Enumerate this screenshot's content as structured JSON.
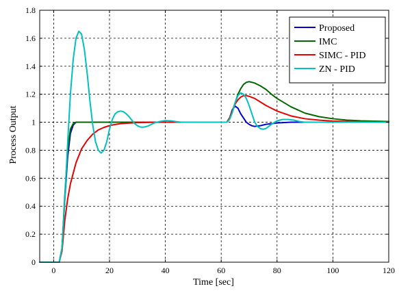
{
  "chart_data": {
    "type": "line",
    "title": "",
    "xlabel": "Time [sec]",
    "ylabel": "Process Output",
    "xlim": [
      -5,
      120
    ],
    "ylim": [
      0,
      1.8
    ],
    "xticks": [
      0,
      20,
      40,
      60,
      80,
      100,
      120
    ],
    "yticks": [
      0,
      0.2,
      0.4,
      0.6,
      0.8,
      1,
      1.2,
      1.4,
      1.6,
      1.8
    ],
    "xtick_labels": [
      "0",
      "20",
      "40",
      "60",
      "80",
      "100",
      "120"
    ],
    "ytick_labels": [
      "0",
      "0.2",
      "0.4",
      "0.6",
      "0.8",
      "1",
      "1.2",
      "1.4",
      "1.6",
      "1.8"
    ],
    "grid": true,
    "grid_style": "dashed",
    "legend_position": "top-right",
    "series": [
      {
        "name": "Proposed",
        "color": "#0000cc",
        "x": [
          -5,
          2,
          3,
          4,
          5,
          6,
          7,
          8,
          9,
          10,
          12,
          15,
          20,
          30,
          40,
          50,
          60,
          61,
          62,
          63,
          64,
          65,
          66,
          67,
          68,
          69,
          70,
          71,
          72,
          74,
          76,
          78,
          80,
          85,
          90,
          100,
          110,
          120
        ],
        "y": [
          0,
          0,
          0.1,
          0.45,
          0.75,
          0.92,
          0.98,
          1.0,
          1.0,
          1.0,
          1.0,
          1.0,
          1.0,
          1.0,
          1.0,
          1.0,
          1.0,
          1.0,
          1.0,
          1.03,
          1.09,
          1.115,
          1.1,
          1.06,
          1.03,
          1.0,
          0.985,
          0.975,
          0.97,
          0.975,
          0.985,
          0.99,
          0.995,
          1.0,
          1.0,
          1.0,
          1.0,
          1.0
        ]
      },
      {
        "name": "IMC",
        "color": "#006600",
        "x": [
          -5,
          2,
          3,
          4,
          5,
          6,
          7,
          8,
          9,
          10,
          12,
          15,
          20,
          30,
          40,
          50,
          60,
          61,
          62,
          63,
          64,
          65,
          66,
          67,
          68,
          69,
          70,
          72,
          74,
          76,
          78,
          80,
          85,
          90,
          95,
          100,
          105,
          110,
          120
        ],
        "y": [
          0,
          0,
          0.1,
          0.48,
          0.8,
          0.95,
          0.99,
          1.0,
          1.0,
          1.0,
          1.0,
          1.0,
          1.0,
          1.0,
          1.0,
          1.0,
          1.0,
          1.0,
          1.0,
          1.03,
          1.08,
          1.14,
          1.2,
          1.24,
          1.27,
          1.285,
          1.29,
          1.28,
          1.26,
          1.235,
          1.2,
          1.17,
          1.11,
          1.065,
          1.04,
          1.025,
          1.015,
          1.01,
          1.005
        ]
      },
      {
        "name": "SIMC - PID",
        "color": "#e60000",
        "x": [
          -5,
          2,
          3,
          4,
          5,
          6,
          8,
          10,
          12,
          14,
          16,
          18,
          20,
          22,
          24,
          26,
          30,
          35,
          40,
          50,
          60,
          61,
          62,
          63,
          64,
          65,
          66,
          67,
          68,
          69,
          70,
          72,
          74,
          76,
          78,
          80,
          85,
          90,
          95,
          100,
          110,
          120
        ],
        "y": [
          0,
          0,
          0.08,
          0.3,
          0.45,
          0.56,
          0.71,
          0.81,
          0.87,
          0.915,
          0.945,
          0.963,
          0.976,
          0.984,
          0.99,
          0.993,
          0.997,
          0.999,
          1.0,
          1.0,
          1.0,
          1.0,
          1.0,
          1.03,
          1.08,
          1.13,
          1.16,
          1.18,
          1.19,
          1.19,
          1.185,
          1.17,
          1.145,
          1.12,
          1.1,
          1.08,
          1.045,
          1.025,
          1.015,
          1.008,
          1.003,
          1.0
        ]
      },
      {
        "name": "ZN - PID",
        "color": "#00c0c0",
        "x": [
          -5,
          2,
          3,
          4,
          5,
          6,
          7,
          8,
          9,
          10,
          11,
          12,
          13,
          14,
          15,
          16,
          17,
          18,
          19,
          20,
          21,
          22,
          23,
          24,
          25,
          26,
          27,
          28,
          29,
          30,
          31,
          32,
          33,
          34,
          35,
          36,
          38,
          40,
          42,
          44,
          46,
          50,
          55,
          60,
          61,
          62,
          63,
          64,
          65,
          66,
          67,
          68,
          69,
          70,
          71,
          72,
          73,
          74,
          75,
          76,
          77,
          78,
          80,
          82,
          84,
          86,
          88,
          90,
          100,
          110,
          120
        ],
        "y": [
          0,
          0,
          0.1,
          0.45,
          0.85,
          1.2,
          1.45,
          1.6,
          1.65,
          1.63,
          1.52,
          1.35,
          1.15,
          0.98,
          0.86,
          0.8,
          0.78,
          0.8,
          0.86,
          0.95,
          1.02,
          1.06,
          1.075,
          1.08,
          1.075,
          1.06,
          1.04,
          1.015,
          0.99,
          0.975,
          0.966,
          0.965,
          0.968,
          0.975,
          0.985,
          0.995,
          1.005,
          1.012,
          1.01,
          1.004,
          1.0,
          1.0,
          1.0,
          1.0,
          1.0,
          1.0,
          1.02,
          1.07,
          1.14,
          1.19,
          1.21,
          1.2,
          1.17,
          1.12,
          1.06,
          1.0,
          0.97,
          0.955,
          0.95,
          0.955,
          0.97,
          0.985,
          1.01,
          1.02,
          1.02,
          1.015,
          1.005,
          1.0,
          1.0,
          1.0,
          1.0
        ]
      }
    ]
  }
}
